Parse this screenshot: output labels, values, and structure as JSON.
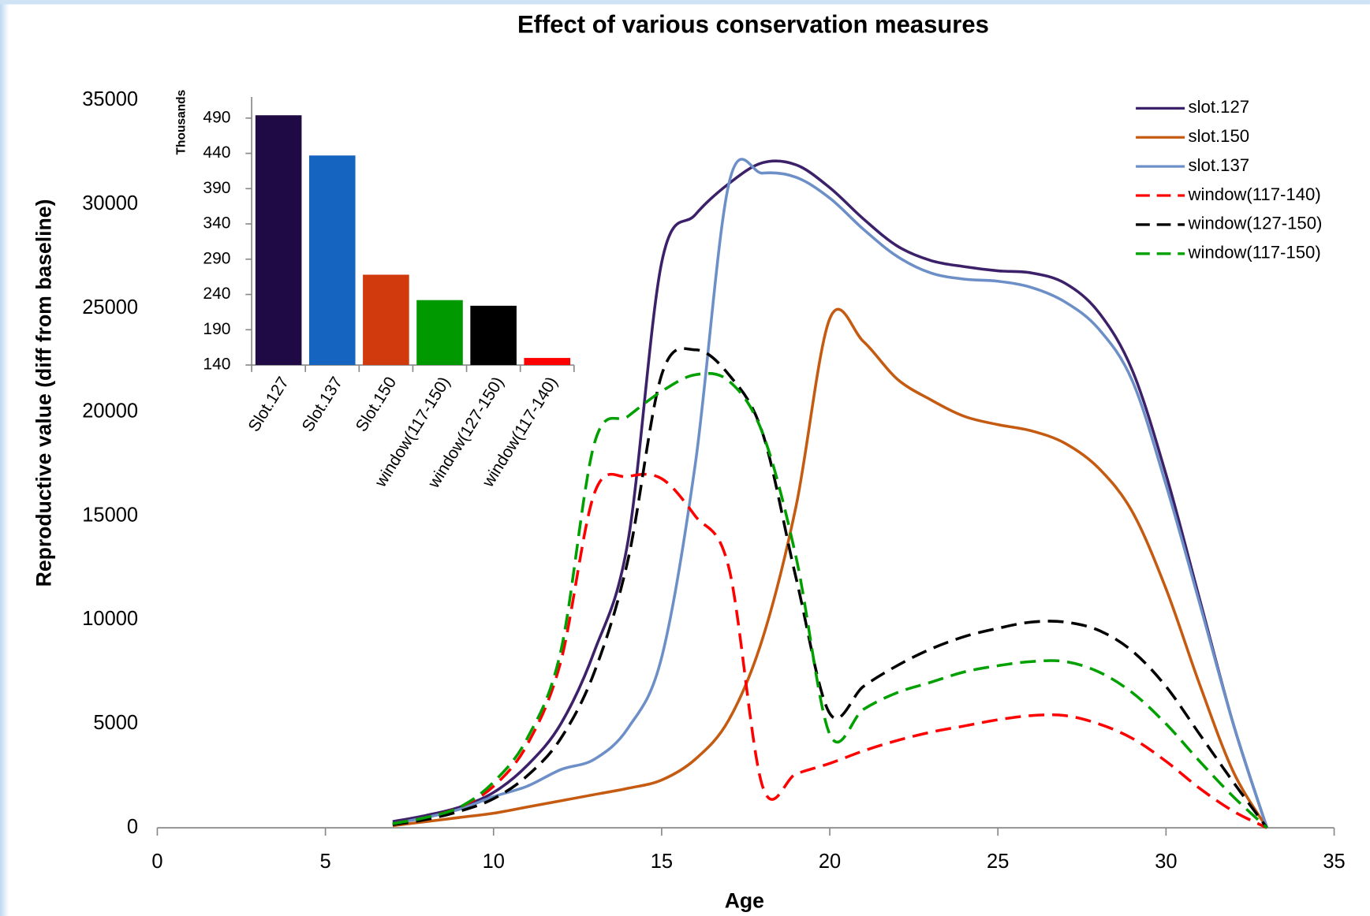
{
  "chart_data": [
    {
      "type": "line",
      "title": "Effect of various conservation measures",
      "x_label": "Age",
      "y_label": "Reproductive value (diff from baseline)",
      "x": [
        7,
        8,
        9,
        10,
        11,
        12,
        13,
        14,
        15,
        16,
        17,
        18,
        19,
        20,
        21,
        22,
        23,
        24,
        25,
        26,
        27,
        28,
        29,
        30,
        31,
        32,
        33
      ],
      "series": [
        {
          "name": "slot.127",
          "color": "#3c2069",
          "dash": false,
          "values": [
            300,
            600,
            1000,
            1700,
            3000,
            5000,
            8500,
            13800,
            27200,
            29500,
            31000,
            32000,
            31900,
            30800,
            29300,
            28000,
            27300,
            27000,
            26800,
            26700,
            26200,
            24800,
            22000,
            17000,
            11000,
            5000,
            0
          ]
        },
        {
          "name": "slot.150",
          "color": "#c55a11",
          "dash": false,
          "values": [
            100,
            300,
            500,
            700,
            1000,
            1300,
            1600,
            1900,
            2300,
            3300,
            5200,
            9100,
            15500,
            24500,
            23400,
            21600,
            20600,
            19800,
            19400,
            19100,
            18500,
            17300,
            15200,
            11500,
            6900,
            2700,
            0
          ]
        },
        {
          "name": "slot.137",
          "color": "#6d8fc7",
          "dash": false,
          "values": [
            200,
            500,
            900,
            1500,
            2000,
            2800,
            3300,
            4800,
            8200,
            17500,
            31000,
            31500,
            31300,
            30300,
            28800,
            27500,
            26700,
            26400,
            26300,
            26000,
            25300,
            24000,
            21500,
            16500,
            10800,
            5000,
            0
          ]
        },
        {
          "name": "window(117-140)",
          "color": "#ff0000",
          "dash": true,
          "values": [
            200,
            500,
            1000,
            2000,
            4000,
            8000,
            16100,
            16900,
            16800,
            15000,
            12500,
            2000,
            2600,
            3100,
            3700,
            4200,
            4600,
            4900,
            5200,
            5400,
            5400,
            5000,
            4300,
            3200,
            1900,
            800,
            0
          ]
        },
        {
          "name": "window(127-150)",
          "color": "#000000",
          "dash": true,
          "values": [
            150,
            400,
            800,
            1400,
            2500,
            4300,
            7500,
            12900,
            21800,
            23000,
            21800,
            19000,
            12000,
            5500,
            6800,
            7800,
            8600,
            9200,
            9600,
            9900,
            9900,
            9500,
            8500,
            6800,
            4500,
            2200,
            0
          ]
        },
        {
          "name": "window(117-150)",
          "color": "#00a000",
          "dash": true,
          "values": [
            200,
            500,
            1000,
            2200,
            4300,
            8500,
            18500,
            19800,
            21000,
            21800,
            21500,
            19000,
            13000,
            4500,
            5700,
            6500,
            7000,
            7500,
            7800,
            8000,
            8000,
            7500,
            6500,
            5000,
            3200,
            1500,
            0
          ]
        }
      ],
      "xlim": [
        0,
        35
      ],
      "xticks": [
        0,
        5,
        10,
        15,
        20,
        25,
        30,
        35
      ],
      "ylim": [
        0,
        35000
      ],
      "yticks": [
        0,
        5000,
        10000,
        15000,
        20000,
        25000,
        30000,
        35000
      ],
      "legend": "upper right",
      "grid": false
    },
    {
      "type": "bar",
      "y_label": "Thousands",
      "categories": [
        "Slot.127",
        "Slot.137",
        "Slot.150",
        "window(117-150)",
        "window(127-150)",
        "window(117-140)"
      ],
      "values": [
        494,
        437,
        268,
        232,
        224,
        150
      ],
      "colors": [
        "#1f0a45",
        "#1565c0",
        "#d03a0c",
        "#009900",
        "#000000",
        "#ff0000"
      ],
      "ylim": [
        140,
        520
      ],
      "yticks": [
        140,
        190,
        240,
        290,
        340,
        390,
        440,
        490
      ],
      "grid": false
    }
  ]
}
